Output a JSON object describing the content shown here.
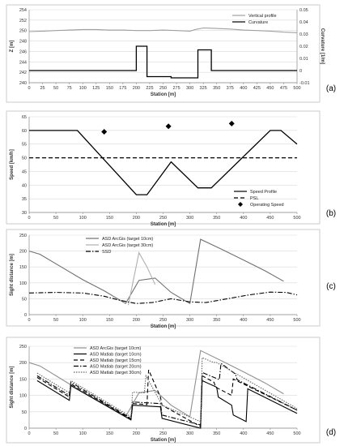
{
  "chart_data": [
    {
      "panel_label": "(a)",
      "type": "line",
      "xlabel": "Station [m]",
      "ylabel": "Z [m]",
      "y2label": "Curvature [1/m]",
      "xlim": [
        0,
        500
      ],
      "ylim": [
        240,
        254
      ],
      "y2lim": [
        -0.01,
        0.05
      ],
      "xticks": [
        "0",
        "25",
        "50",
        "75",
        "100",
        "125",
        "150",
        "175",
        "200",
        "225",
        "250",
        "275",
        "300",
        "325",
        "350",
        "375",
        "400",
        "425",
        "450",
        "475",
        "500"
      ],
      "yticks": [
        "240",
        "242",
        "244",
        "246",
        "248",
        "250",
        "252",
        "254"
      ],
      "y2ticks": [
        "-0.01",
        "0",
        "0.01",
        "0.02",
        "0.03",
        "0.04",
        "0.05"
      ],
      "legend_position": "top-right",
      "series": [
        {
          "name": "Vertical profile",
          "axis": "left",
          "color": "#a0a0a0",
          "x": [
            0,
            25,
            50,
            75,
            100,
            125,
            150,
            175,
            200,
            225,
            250,
            275,
            300,
            310,
            325,
            350,
            375,
            400,
            425,
            450,
            475,
            500
          ],
          "y": [
            249.8,
            249.9,
            250.0,
            250.1,
            250.2,
            250.2,
            250.1,
            250.1,
            250.0,
            250.0,
            250.1,
            250.0,
            249.9,
            250.2,
            250.5,
            250.4,
            250.3,
            250.1,
            250.0,
            249.9,
            249.7,
            249.6
          ]
        },
        {
          "name": "Curvature",
          "axis": "right",
          "color": "#000000",
          "step": true,
          "x": [
            0,
            200,
            200,
            220,
            220,
            265,
            265,
            315,
            315,
            340,
            340,
            500
          ],
          "y": [
            0.0,
            0.0,
            0.02,
            0.02,
            -0.005,
            -0.005,
            -0.006,
            -0.006,
            0.017,
            0.017,
            0.0,
            0.0
          ]
        }
      ]
    },
    {
      "panel_label": "(b)",
      "type": "line",
      "xlabel": "Station [m]",
      "ylabel": "Speed [km/h]",
      "xlim": [
        0,
        500
      ],
      "ylim": [
        30,
        65
      ],
      "xticks": [
        "0",
        "50",
        "100",
        "150",
        "200",
        "250",
        "300",
        "350",
        "400",
        "450",
        "500"
      ],
      "yticks": [
        "30",
        "35",
        "40",
        "45",
        "50",
        "55",
        "60",
        "65"
      ],
      "legend_position": "bottom-right",
      "series": [
        {
          "name": "Speed Profile",
          "style": "solid",
          "x": [
            0,
            90,
            200,
            220,
            265,
            315,
            340,
            450,
            470,
            500
          ],
          "y": [
            60,
            60,
            36.5,
            36.5,
            48.5,
            39,
            39,
            60,
            60,
            55
          ]
        },
        {
          "name": "PSL",
          "style": "dashed",
          "x": [
            0,
            500
          ],
          "y": [
            50,
            50
          ]
        },
        {
          "name": "Operating Speed",
          "style": "markers",
          "x": [
            140,
            260,
            378
          ],
          "y": [
            59.5,
            61.5,
            62.5
          ]
        }
      ]
    },
    {
      "panel_label": "(c)",
      "type": "line",
      "xlabel": "Station [m]",
      "ylabel": "Sight distance [m]",
      "xlim": [
        0,
        500
      ],
      "ylim": [
        0,
        250
      ],
      "xticks": [
        "0",
        "50",
        "100",
        "150",
        "200",
        "250",
        "300",
        "350",
        "400",
        "450",
        "500"
      ],
      "yticks": [
        "0",
        "50",
        "100",
        "150",
        "200",
        "250"
      ],
      "legend_position": "top-left",
      "series": [
        {
          "name": "ASD ArcGis (target 10cm)",
          "color": "#707070",
          "x": [
            0,
            20,
            60,
            100,
            140,
            180,
            205,
            235,
            265,
            300,
            320,
            360,
            400,
            440,
            475
          ],
          "y": [
            200,
            190,
            150,
            110,
            75,
            35,
            108,
            115,
            70,
            35,
            237,
            205,
            172,
            138,
            105
          ]
        },
        {
          "name": "ASD ArcGis (target 30cm)",
          "color": "#b0b0b0",
          "x": [
            185,
            205,
            220,
            235
          ],
          "y": [
            30,
            195,
            150,
            95
          ]
        },
        {
          "name": "SSD",
          "color": "#000000",
          "style": "dashdot",
          "x": [
            0,
            50,
            100,
            140,
            170,
            200,
            230,
            265,
            300,
            330,
            370,
            410,
            450,
            480,
            500
          ],
          "y": [
            68,
            70,
            68,
            58,
            45,
            35,
            38,
            50,
            40,
            38,
            50,
            62,
            71,
            70,
            62
          ]
        }
      ]
    },
    {
      "panel_label": "(d)",
      "type": "line",
      "xlabel": "Station [m]",
      "ylabel": "Sight distance [m]",
      "xlim": [
        0,
        500
      ],
      "ylim": [
        0,
        250
      ],
      "xticks": [
        "0",
        "50",
        "100",
        "150",
        "200",
        "250",
        "300",
        "350",
        "400",
        "450",
        "500"
      ],
      "yticks": [
        "0",
        "50",
        "100",
        "150",
        "200",
        "250"
      ],
      "legend_position": "top-left",
      "series": [
        {
          "name": "ASD ArcGis (target 10cm)",
          "color": "#909090",
          "style": "solid",
          "x": [
            0,
            20,
            60,
            100,
            140,
            180,
            205,
            235,
            265,
            300,
            320,
            360,
            400,
            440,
            475
          ],
          "y": [
            200,
            190,
            150,
            110,
            75,
            35,
            108,
            115,
            70,
            35,
            237,
            205,
            172,
            138,
            105
          ]
        },
        {
          "name": "ASD Matlab (target 10cm)",
          "color": "#000000",
          "style": "solid",
          "x": [
            15,
            75,
            78,
            190,
            193,
            245,
            248,
            320,
            323,
            350,
            353,
            378,
            381,
            405,
            408,
            500
          ],
          "y": [
            145,
            85,
            130,
            25,
            70,
            65,
            30,
            0,
            145,
            125,
            95,
            70,
            40,
            20,
            120,
            45
          ]
        },
        {
          "name": "ASD Matlab (target 15cm)",
          "color": "#000000",
          "style": "dashed",
          "x": [
            15,
            75,
            78,
            190,
            193,
            220,
            223,
            245,
            248,
            320,
            323,
            345,
            348,
            378,
            381,
            500
          ],
          "y": [
            155,
            95,
            135,
            28,
            75,
            72,
            178,
            95,
            70,
            5,
            160,
            140,
            125,
            100,
            150,
            55
          ]
        },
        {
          "name": "ASD Matlab (target 20cm)",
          "color": "#000000",
          "style": "dashdot",
          "x": [
            15,
            75,
            78,
            190,
            193,
            245,
            248,
            320,
            323,
            355,
            358,
            385,
            388,
            500
          ],
          "y": [
            160,
            100,
            140,
            30,
            80,
            75,
            40,
            10,
            170,
            148,
            198,
            165,
            148,
            55
          ]
        },
        {
          "name": "ASD Matlab (target 30cm)",
          "color": "#666666",
          "style": "dotted",
          "x": [
            15,
            75,
            78,
            190,
            193,
            215,
            218,
            245,
            248,
            320,
            323,
            345,
            348,
            500
          ],
          "y": [
            168,
            108,
            145,
            35,
            110,
            108,
            160,
            80,
            70,
            20,
            215,
            200,
            202,
            60
          ]
        }
      ]
    }
  ]
}
